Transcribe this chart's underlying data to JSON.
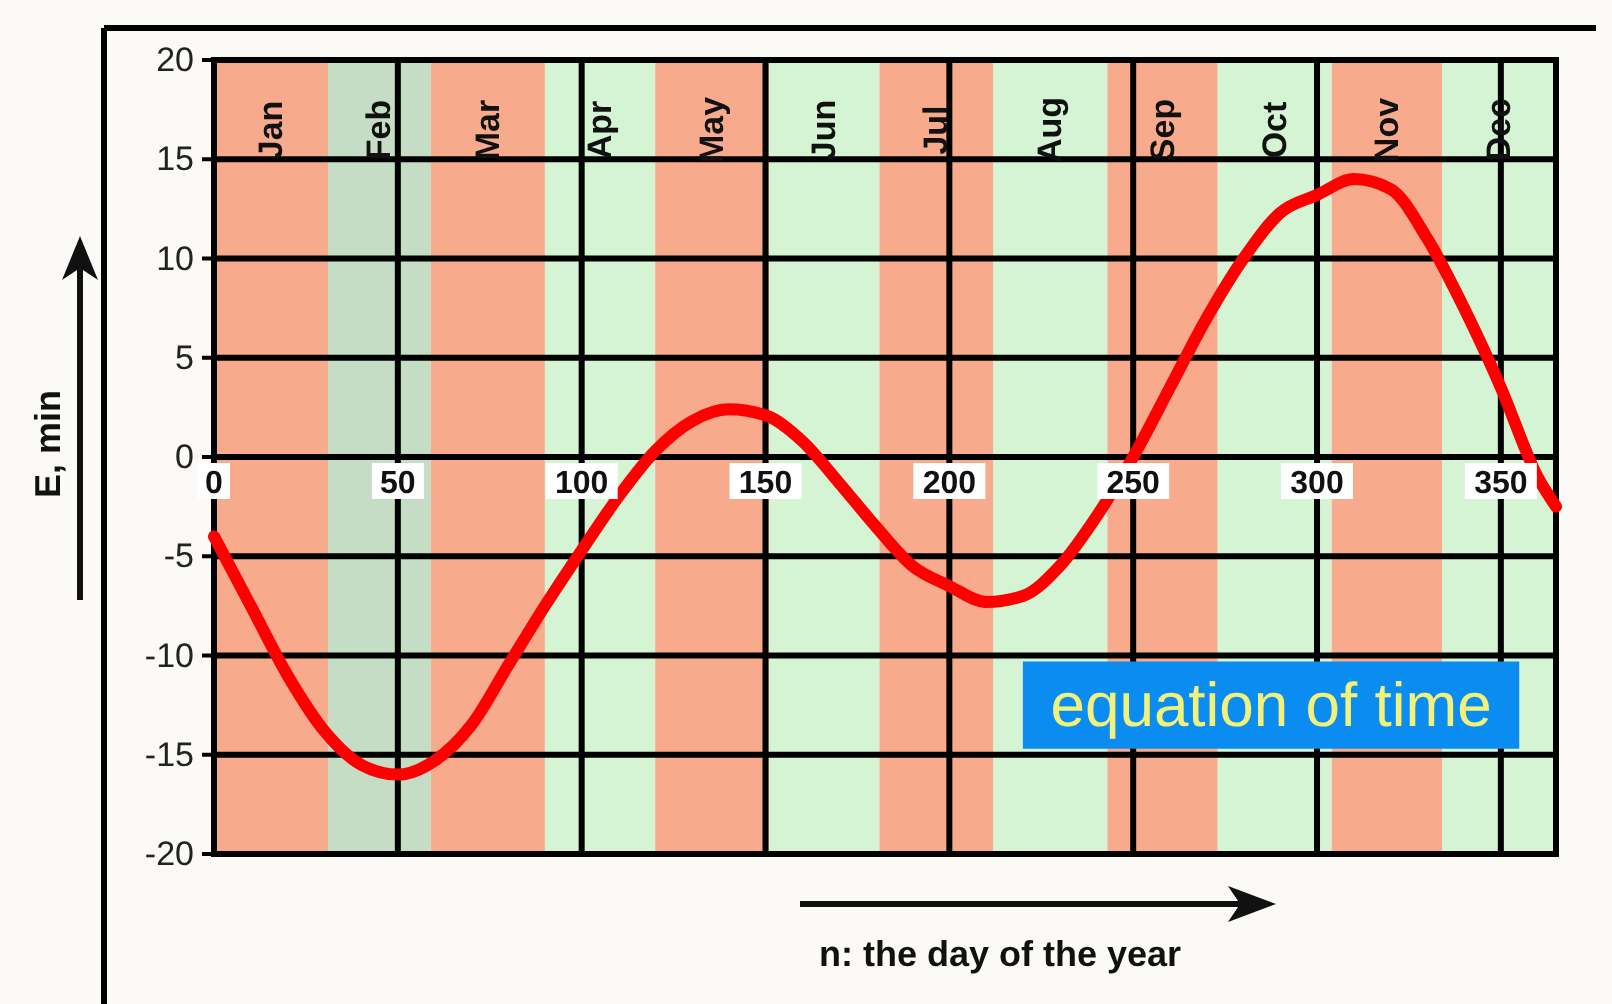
{
  "chart_data": {
    "type": "line",
    "title": "equation of time",
    "xlabel": "n: the day of the year",
    "ylabel": "E, min",
    "x": [
      0,
      10,
      20,
      30,
      40,
      50,
      60,
      70,
      80,
      90,
      100,
      110,
      120,
      130,
      140,
      150,
      160,
      170,
      180,
      190,
      200,
      210,
      220,
      230,
      240,
      250,
      260,
      270,
      280,
      290,
      300,
      310,
      320,
      330,
      340,
      350,
      360,
      365
    ],
    "series": [
      {
        "color": "#ff0000",
        "values": [
          -4,
          -7.5,
          -11,
          -13.8,
          -15.5,
          -16,
          -15.3,
          -13.5,
          -10.5,
          -7.5,
          -4.7,
          -2,
          0.3,
          1.8,
          2.4,
          2.1,
          0.8,
          -1.3,
          -3.5,
          -5.5,
          -6.5,
          -7.3,
          -7,
          -5.5,
          -3,
          0,
          3.5,
          7,
          10,
          12.3,
          13.2,
          14,
          13.5,
          11,
          7.5,
          3.5,
          -1,
          -2.5
        ]
      }
    ],
    "xlim": [
      0,
      365
    ],
    "ylim": [
      -20,
      20
    ],
    "xticks": [
      0,
      50,
      100,
      150,
      200,
      250,
      300,
      350
    ],
    "yticks": [
      -20,
      -15,
      -10,
      -5,
      0,
      5,
      10,
      15,
      20
    ],
    "grid": true,
    "marker": "none",
    "line_style": "solid",
    "bands": [
      {
        "axis": "x",
        "from": 0,
        "to": 31,
        "label": "Jan",
        "color": "#f8ab8c"
      },
      {
        "axis": "x",
        "from": 31,
        "to": 59,
        "label": "Feb",
        "color": "#c4ddc4"
      },
      {
        "axis": "x",
        "from": 59,
        "to": 90,
        "label": "Mar",
        "color": "#f8ab8c"
      },
      {
        "axis": "x",
        "from": 90,
        "to": 120,
        "label": "Apr",
        "color": "#d4f4d4"
      },
      {
        "axis": "x",
        "from": 120,
        "to": 151,
        "label": "May",
        "color": "#f8ab8c"
      },
      {
        "axis": "x",
        "from": 151,
        "to": 181,
        "label": "Jun",
        "color": "#d4f4d4"
      },
      {
        "axis": "x",
        "from": 181,
        "to": 212,
        "label": "Jul",
        "color": "#f8ab8c"
      },
      {
        "axis": "x",
        "from": 212,
        "to": 243,
        "label": "Aug",
        "color": "#d4f4d4"
      },
      {
        "axis": "x",
        "from": 243,
        "to": 273,
        "label": "Sep",
        "color": "#f8ab8c"
      },
      {
        "axis": "x",
        "from": 273,
        "to": 304,
        "label": "Oct",
        "color": "#d4f4d4"
      },
      {
        "axis": "x",
        "from": 304,
        "to": 334,
        "label": "Nov",
        "color": "#f8ab8c"
      },
      {
        "axis": "x",
        "from": 334,
        "to": 365,
        "label": "Dec",
        "color": "#d4f4d4"
      }
    ]
  }
}
